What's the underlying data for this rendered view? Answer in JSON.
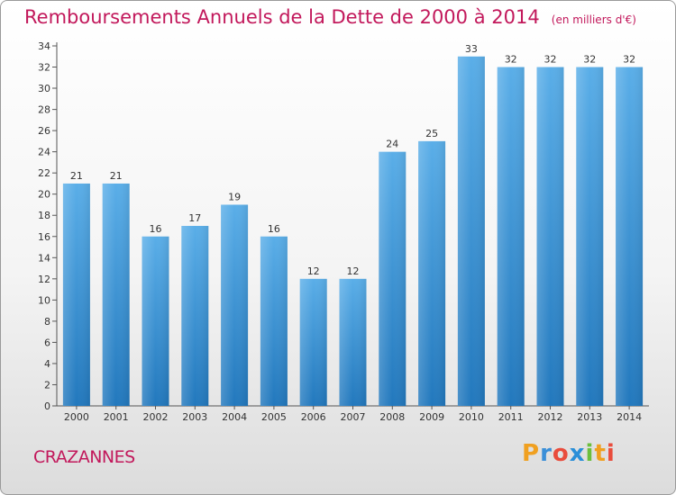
{
  "header": {
    "title": "Remboursements Annuels de la Dette de 2000 à 2014",
    "unit": "(en milliers d'€)"
  },
  "footer": {
    "commune": "CRAZANNES",
    "logo_text": "Proxiti"
  },
  "colors": {
    "title": "#c2185b",
    "bar_top": "#5aaee8",
    "bar_bottom": "#2278bd"
  },
  "chart_data": {
    "type": "bar",
    "title": "Remboursements Annuels de la Dette de 2000 à 2014",
    "xlabel": "",
    "ylabel": "",
    "categories": [
      "2000",
      "2001",
      "2002",
      "2003",
      "2004",
      "2005",
      "2006",
      "2007",
      "2008",
      "2009",
      "2010",
      "2011",
      "2012",
      "2013",
      "2014"
    ],
    "values": [
      21,
      21,
      16,
      17,
      19,
      16,
      12,
      12,
      24,
      25,
      33,
      32,
      32,
      32,
      32
    ],
    "ylim": [
      0,
      34
    ],
    "yticks": [
      0,
      2,
      4,
      6,
      8,
      10,
      12,
      14,
      16,
      18,
      20,
      22,
      24,
      26,
      28,
      30,
      32,
      34
    ],
    "grid": false,
    "data_labels": true
  }
}
